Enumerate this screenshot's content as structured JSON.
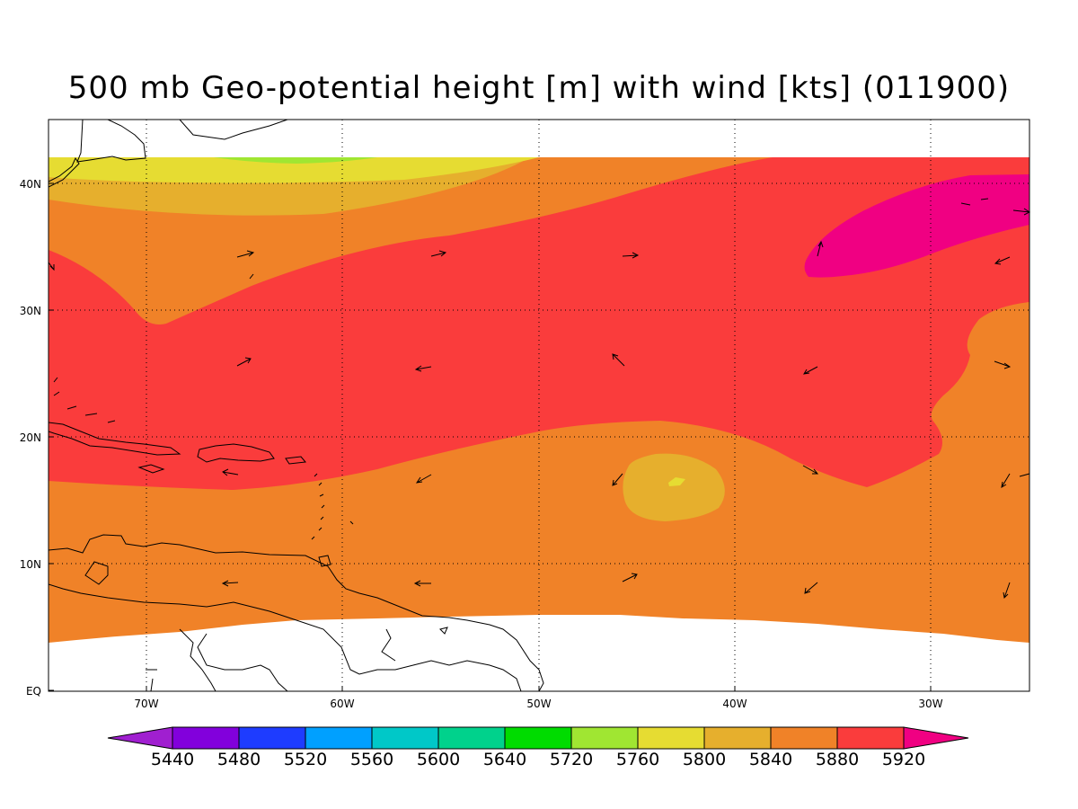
{
  "title": "500 mb Geo-potential height [m] with wind [kts] (011900)",
  "lat_labels": [
    "EQ",
    "10N",
    "20N",
    "30N",
    "40N"
  ],
  "lon_labels": [
    "70W",
    "60W",
    "50W",
    "40W",
    "30W"
  ],
  "colorbar": {
    "labels": [
      "5440",
      "5480",
      "5520",
      "5560",
      "5600",
      "5640",
      "5720",
      "5760",
      "5800",
      "5840",
      "5880",
      "5920"
    ],
    "colors": [
      "#a01fd0",
      "#8200dc",
      "#1e3cff",
      "#00a0ff",
      "#00c8c8",
      "#00d28c",
      "#00dc00",
      "#a0e632",
      "#e6dc32",
      "#e6af2d",
      "#f08228",
      "#fa3c3c",
      "#f00082"
    ]
  },
  "fill_colors": {
    "c5920": "#f00082",
    "c5880": "#fa3c3c",
    "c5840": "#f08228",
    "c5800": "#e6af2d",
    "c5760": "#e6dc32",
    "c5720": "#a0e632"
  }
}
